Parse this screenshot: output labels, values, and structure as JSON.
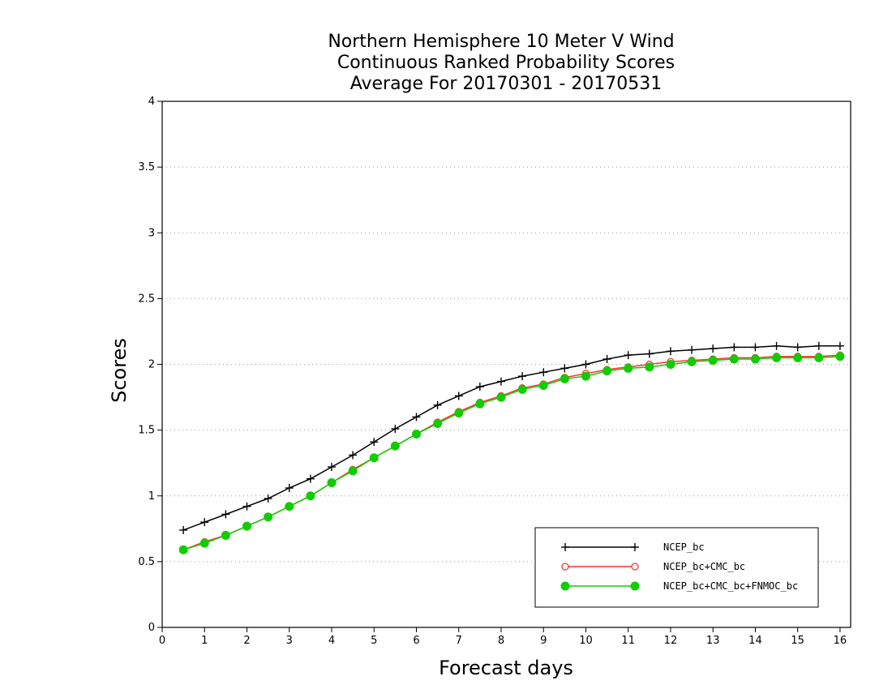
{
  "chart_data": {
    "type": "line",
    "title": [
      "Northern Hemisphere 10 Meter V Wind",
      "Continuous Ranked Probability Scores",
      "Average For 20170301 - 20170531"
    ],
    "xlabel": "Forecast days",
    "ylabel": "Scores",
    "xlim": [
      0,
      16.25
    ],
    "ylim": [
      0,
      4
    ],
    "xticks": [
      "0",
      "1",
      "2",
      "3",
      "4",
      "5",
      "6",
      "7",
      "8",
      "9",
      "10",
      "11",
      "12",
      "13",
      "14",
      "15",
      "16"
    ],
    "yticks": [
      "0",
      "0.5",
      "1",
      "1.5",
      "2",
      "2.5",
      "3",
      "3.5",
      "4"
    ],
    "grid": "horizontal-dotted",
    "legend_position": "bottom-right",
    "x": [
      0.5,
      1,
      1.5,
      2,
      2.5,
      3,
      3.5,
      4,
      4.5,
      5,
      5.5,
      6,
      6.5,
      7,
      7.5,
      8,
      8.5,
      9,
      9.5,
      10,
      10.5,
      11,
      11.5,
      12,
      12.5,
      13,
      13.5,
      14,
      14.5,
      15,
      15.5,
      16
    ],
    "series": [
      {
        "name": "NCEP_bc",
        "color": "#000000",
        "marker": "plus",
        "values": [
          0.74,
          0.8,
          0.86,
          0.92,
          0.98,
          1.06,
          1.13,
          1.22,
          1.31,
          1.41,
          1.51,
          1.6,
          1.69,
          1.76,
          1.83,
          1.87,
          1.91,
          1.94,
          1.97,
          2.0,
          2.04,
          2.07,
          2.08,
          2.1,
          2.11,
          2.12,
          2.13,
          2.13,
          2.14,
          2.13,
          2.14,
          2.14
        ]
      },
      {
        "name": "NCEP_bc+CMC_bc",
        "color": "#ff3333",
        "marker": "open-circle",
        "values": [
          0.59,
          0.65,
          0.7,
          0.77,
          0.84,
          0.92,
          1.0,
          1.1,
          1.2,
          1.29,
          1.38,
          1.47,
          1.56,
          1.64,
          1.71,
          1.76,
          1.82,
          1.85,
          1.9,
          1.93,
          1.96,
          1.98,
          2.0,
          2.02,
          2.03,
          2.04,
          2.05,
          2.05,
          2.06,
          2.06,
          2.06,
          2.07
        ]
      },
      {
        "name": "NCEP_bc+CMC_bc+FNMOC_bc",
        "color": "#11cc00",
        "marker": "filled-circle",
        "values": [
          0.59,
          0.64,
          0.7,
          0.77,
          0.84,
          0.92,
          1.0,
          1.1,
          1.19,
          1.29,
          1.38,
          1.47,
          1.55,
          1.63,
          1.7,
          1.75,
          1.81,
          1.84,
          1.89,
          1.91,
          1.95,
          1.97,
          1.98,
          2.0,
          2.02,
          2.03,
          2.04,
          2.04,
          2.05,
          2.05,
          2.05,
          2.06
        ]
      }
    ]
  }
}
